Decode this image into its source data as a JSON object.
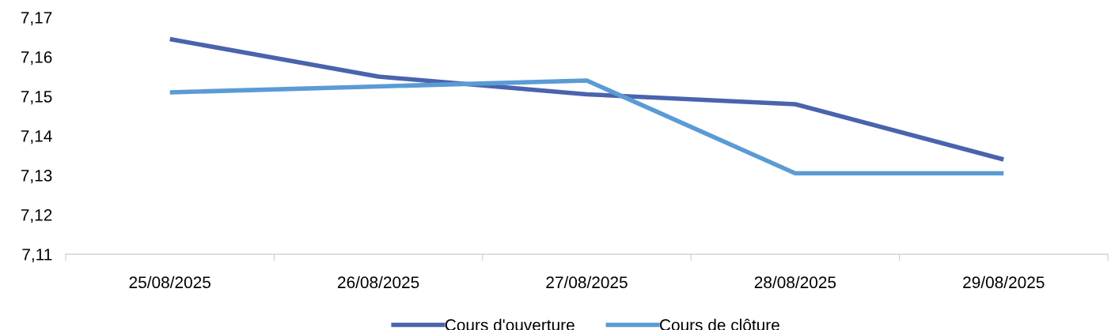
{
  "chart_data": {
    "type": "line",
    "categories": [
      "25/08/2025",
      "26/08/2025",
      "27/08/2025",
      "28/08/2025",
      "29/08/2025"
    ],
    "series": [
      {
        "name": "Cours d'ouverture",
        "color": "#4a63ad",
        "values": [
          7.1645,
          7.155,
          7.1505,
          7.148,
          7.134
        ]
      },
      {
        "name": "Cours de clôture",
        "color": "#5b9bd5",
        "values": [
          7.151,
          7.1525,
          7.154,
          7.1305,
          7.1305
        ]
      }
    ],
    "ylim": [
      7.11,
      7.17
    ],
    "yticks": [
      {
        "value": 7.11,
        "label": "7,11"
      },
      {
        "value": 7.12,
        "label": "7,12"
      },
      {
        "value": 7.13,
        "label": "7,13"
      },
      {
        "value": 7.14,
        "label": "7,14"
      },
      {
        "value": 7.15,
        "label": "7,15"
      },
      {
        "value": 7.16,
        "label": "7,16"
      },
      {
        "value": 7.17,
        "label": "7,17"
      }
    ],
    "grid": false,
    "legend": "bottom",
    "marker": "none",
    "line_style": "solid"
  }
}
